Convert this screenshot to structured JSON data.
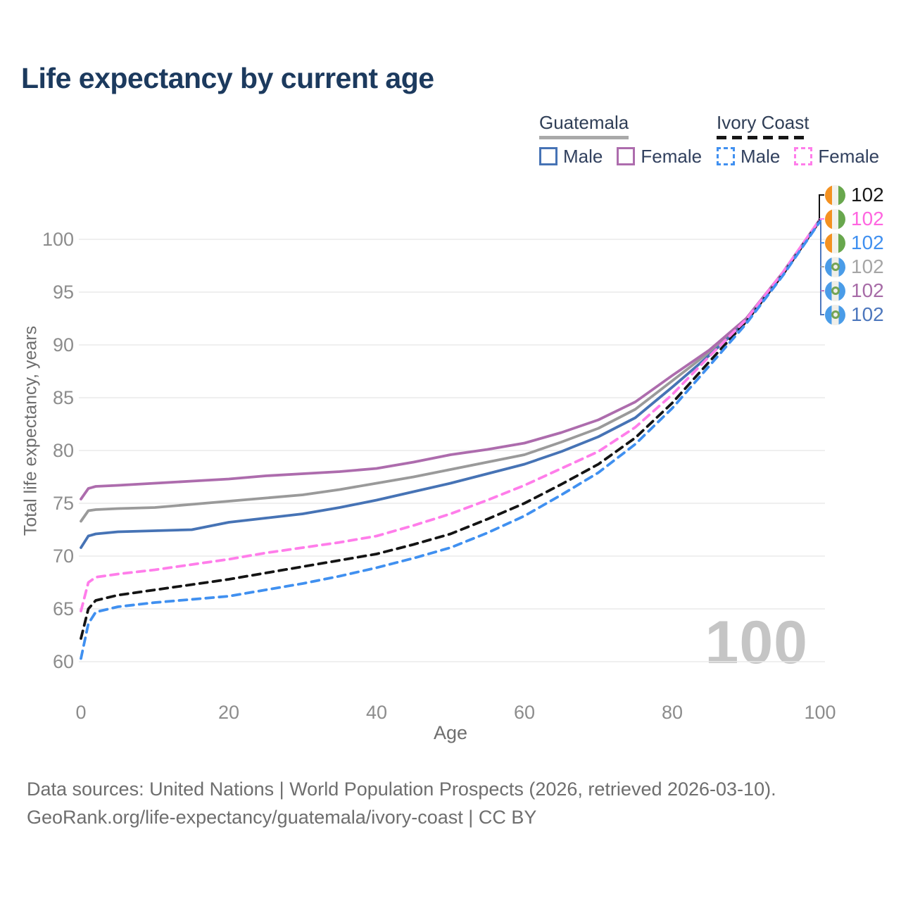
{
  "title": "Life expectancy by current age",
  "legend": {
    "groups": [
      {
        "label": "Guatemala",
        "line_style": "solid",
        "underline_color": "#a9a9a9",
        "items": [
          {
            "label": "Male",
            "color": "#4673b5",
            "dashed": false
          },
          {
            "label": "Female",
            "color": "#ad6cad",
            "dashed": false
          }
        ]
      },
      {
        "label": "Ivory Coast",
        "line_style": "dashed",
        "underline_color": "#161616",
        "items": [
          {
            "label": "Male",
            "color": "#4090f0",
            "dashed": true
          },
          {
            "label": "Female",
            "color": "#ff7dea",
            "dashed": true
          }
        ]
      }
    ]
  },
  "watermark_age_counter": "100",
  "footer": {
    "line1": "Data sources: United Nations | World Population Prospects (2026, retrieved 2026-03-10).",
    "line2": "GeoRank.org/life-expectancy/guatemala/ivory-coast | CC BY"
  },
  "chart_data": {
    "type": "line",
    "title": "Life expectancy by current age",
    "xlabel": "Age",
    "ylabel": "Total life expectancy, years",
    "xlim": [
      0,
      100
    ],
    "ylim": [
      60,
      102
    ],
    "grid": "horizontal",
    "legend_position": "top-right",
    "xticks": [
      0,
      20,
      40,
      60,
      80,
      100
    ],
    "yticks": [
      60,
      65,
      70,
      75,
      80,
      85,
      90,
      95,
      100
    ],
    "x": [
      0,
      1,
      2,
      5,
      10,
      15,
      20,
      25,
      30,
      35,
      40,
      45,
      50,
      55,
      60,
      65,
      70,
      75,
      80,
      85,
      90,
      95,
      100
    ],
    "series": [
      {
        "name": "Guatemala All",
        "country": "Guatemala",
        "sex": "All",
        "color": "#9a9a9a",
        "dashed": false,
        "values": [
          73.3,
          74.3,
          74.4,
          74.5,
          74.6,
          74.9,
          75.2,
          75.5,
          75.8,
          76.3,
          76.9,
          77.5,
          78.2,
          78.9,
          79.6,
          80.8,
          82.1,
          83.9,
          86.6,
          89.3,
          92.3,
          96.8,
          101.9
        ]
      },
      {
        "name": "Guatemala Female",
        "country": "Guatemala",
        "sex": "Female",
        "color": "#ad6cad",
        "dashed": false,
        "values": [
          75.4,
          76.4,
          76.6,
          76.7,
          76.9,
          77.1,
          77.3,
          77.6,
          77.8,
          78.0,
          78.3,
          78.9,
          79.6,
          80.1,
          80.7,
          81.7,
          82.9,
          84.6,
          87.1,
          89.5,
          92.5,
          96.9,
          101.9
        ]
      },
      {
        "name": "Guatemala Male",
        "country": "Guatemala",
        "sex": "Male",
        "color": "#4673b5",
        "dashed": false,
        "values": [
          70.8,
          71.9,
          72.1,
          72.3,
          72.4,
          72.5,
          73.2,
          73.6,
          74.0,
          74.6,
          75.3,
          76.1,
          76.9,
          77.8,
          78.7,
          79.9,
          81.3,
          83.1,
          86.0,
          89.0,
          92.2,
          96.7,
          101.8
        ]
      },
      {
        "name": "Ivory Coast All",
        "country": "Ivory Coast",
        "sex": "All",
        "color": "#141414",
        "dashed": true,
        "values": [
          62.2,
          65.0,
          65.8,
          66.3,
          66.8,
          67.3,
          67.8,
          68.4,
          69.0,
          69.6,
          70.2,
          71.1,
          72.1,
          73.5,
          75.0,
          76.8,
          78.7,
          81.2,
          84.5,
          88.4,
          92.2,
          96.7,
          101.8
        ]
      },
      {
        "name": "Ivory Coast Female",
        "country": "Ivory Coast",
        "sex": "Female",
        "color": "#ff7dea",
        "dashed": true,
        "values": [
          64.8,
          67.5,
          68.0,
          68.3,
          68.7,
          69.2,
          69.7,
          70.3,
          70.8,
          71.3,
          71.9,
          72.9,
          74.0,
          75.3,
          76.7,
          78.3,
          79.9,
          82.2,
          85.3,
          88.9,
          92.4,
          96.9,
          101.9
        ]
      },
      {
        "name": "Ivory Coast Male",
        "country": "Ivory Coast",
        "sex": "Male",
        "color": "#4090f0",
        "dashed": true,
        "values": [
          60.3,
          63.6,
          64.7,
          65.2,
          65.6,
          65.9,
          66.2,
          66.8,
          67.4,
          68.1,
          68.9,
          69.8,
          70.8,
          72.2,
          73.8,
          75.8,
          77.9,
          80.6,
          84.0,
          88.0,
          92.0,
          96.6,
          101.7
        ]
      }
    ],
    "end_labels": [
      {
        "value": "102",
        "series": "Ivory Coast All",
        "flag": "ivory-coast",
        "text_color": "#1a1a1a",
        "connector_color": "#111111"
      },
      {
        "value": "102",
        "series": "Ivory Coast Female",
        "flag": "ivory-coast",
        "text_color": "#ff66e0",
        "connector_color": "#ff7dea"
      },
      {
        "value": "102",
        "series": "Ivory Coast Male",
        "flag": "ivory-coast",
        "text_color": "#4090f0",
        "connector_color": "#4090f0"
      },
      {
        "value": "102",
        "series": "Guatemala All",
        "flag": "guatemala",
        "text_color": "#a6a6a6",
        "connector_color": "#a6a6a6"
      },
      {
        "value": "102",
        "series": "Guatemala Female",
        "flag": "guatemala",
        "text_color": "#a76ca7",
        "connector_color": "#c07ec0"
      },
      {
        "value": "102",
        "series": "Guatemala Male",
        "flag": "guatemala",
        "text_color": "#4d77bd",
        "connector_color": "#4d77bd"
      }
    ]
  }
}
